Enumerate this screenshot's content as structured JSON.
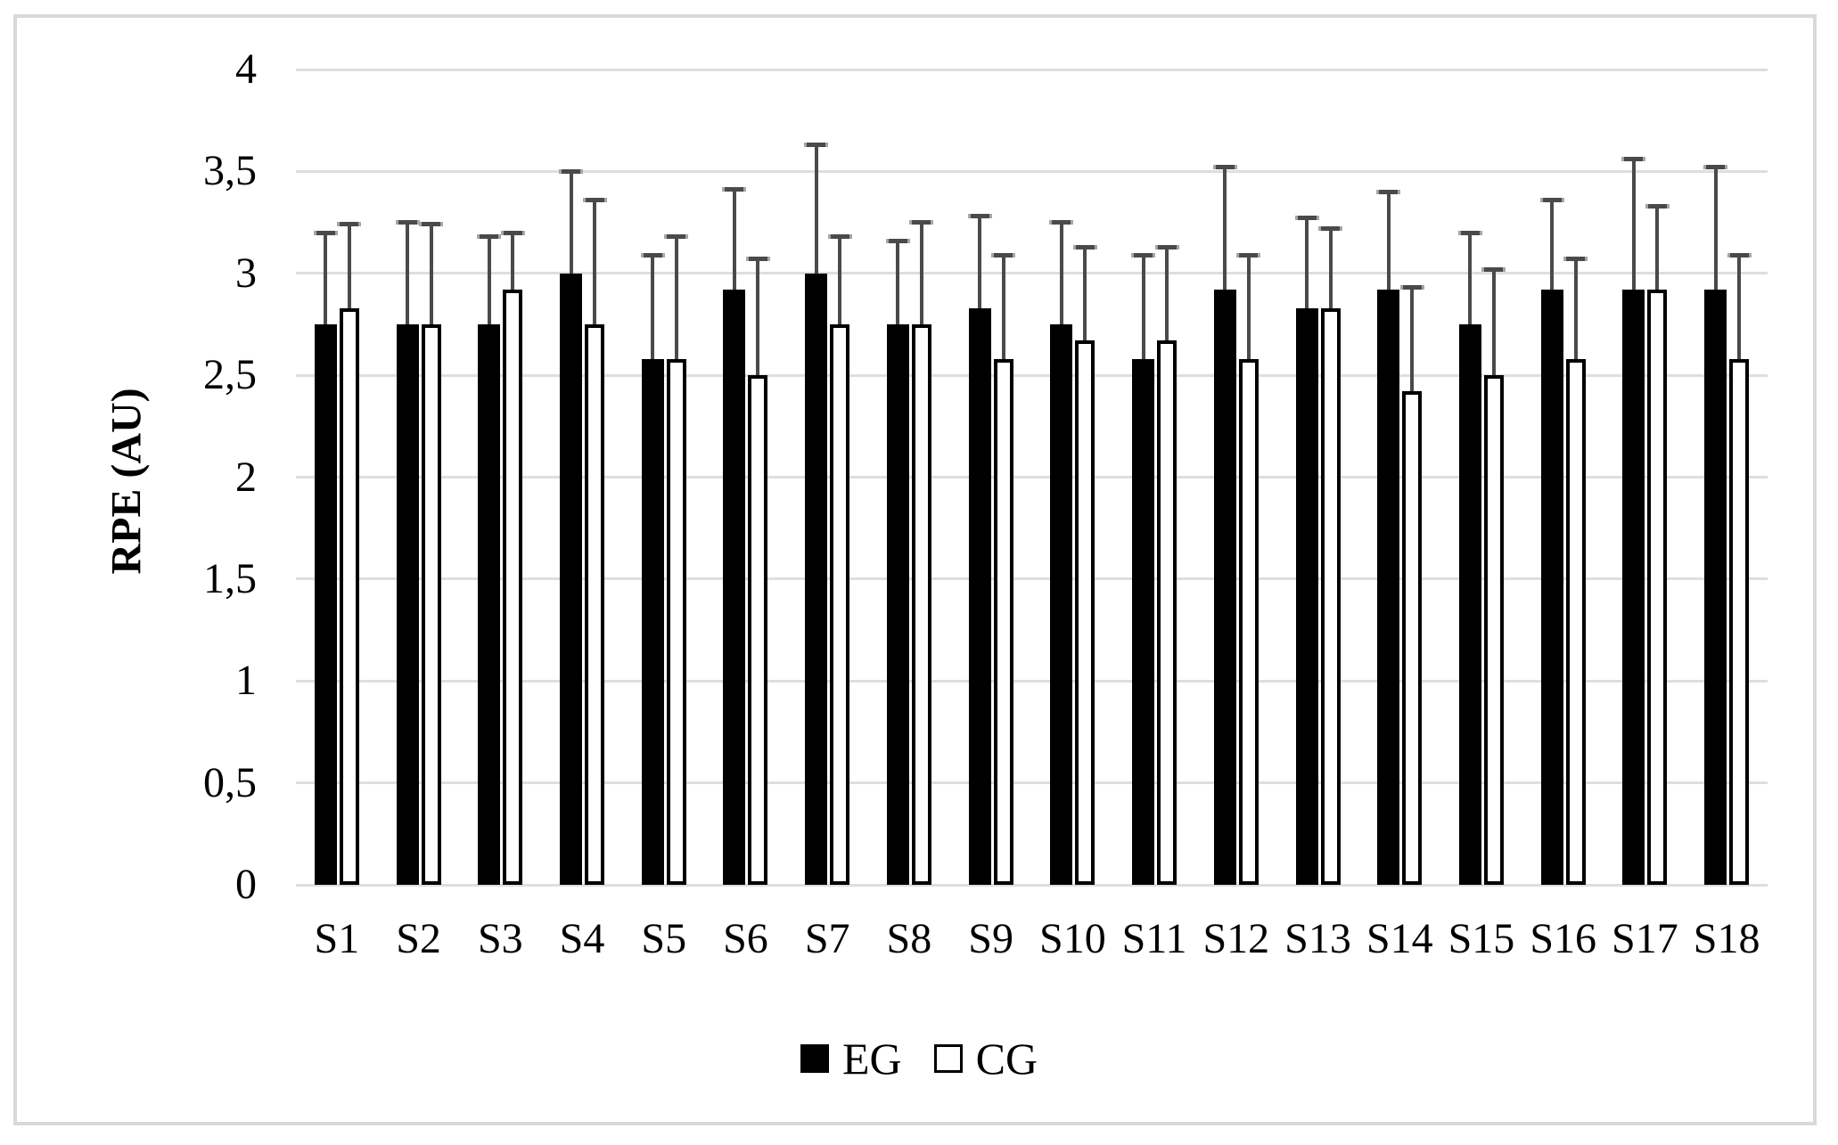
{
  "figure": {
    "background": "#ffffff",
    "border_color": "#d9d9d9",
    "gridline_color": "#dedede",
    "error_bar_color": "#4a4a4a",
    "text_color": "#000000"
  },
  "chart_data": {
    "type": "bar",
    "title": "",
    "xlabel": "",
    "ylabel": "RPE (AU)",
    "ylim": [
      0,
      4
    ],
    "y_tick_step": 0.5,
    "decimal_separator": ",",
    "grid": "horizontal",
    "legend_position": "bottom-center",
    "y_tick_labels_top_to_bottom": [
      "4",
      "3,5",
      "3",
      "2,5",
      "2",
      "1,5",
      "1",
      "0,5",
      "0"
    ],
    "categories": [
      "S1",
      "S2",
      "S3",
      "S4",
      "S5",
      "S6",
      "S7",
      "S8",
      "S9",
      "S10",
      "S11",
      "S12",
      "S13",
      "S14",
      "S15",
      "S16",
      "S17",
      "S18"
    ],
    "series": [
      {
        "name": "EG",
        "fill": "#000000",
        "border": "#000000",
        "values": [
          2.75,
          2.75,
          2.75,
          3.0,
          2.58,
          2.92,
          3.0,
          2.75,
          2.83,
          2.75,
          2.58,
          2.92,
          2.83,
          2.92,
          2.75,
          2.92,
          2.92,
          2.92
        ],
        "error_top": [
          3.2,
          3.25,
          3.18,
          3.5,
          3.09,
          3.41,
          3.63,
          3.16,
          3.28,
          3.25,
          3.09,
          3.52,
          3.27,
          3.4,
          3.2,
          3.36,
          3.56,
          3.52
        ]
      },
      {
        "name": "CG",
        "fill": "#ffffff",
        "border": "#000000",
        "values": [
          2.83,
          2.75,
          2.92,
          2.75,
          2.58,
          2.5,
          2.75,
          2.75,
          2.58,
          2.67,
          2.67,
          2.58,
          2.83,
          2.42,
          2.5,
          2.58,
          2.92,
          2.58
        ],
        "error_top": [
          3.24,
          3.24,
          3.2,
          3.36,
          3.18,
          3.07,
          3.18,
          3.25,
          3.09,
          3.13,
          3.13,
          3.09,
          3.22,
          2.93,
          3.02,
          3.07,
          3.33,
          3.09
        ]
      }
    ]
  }
}
